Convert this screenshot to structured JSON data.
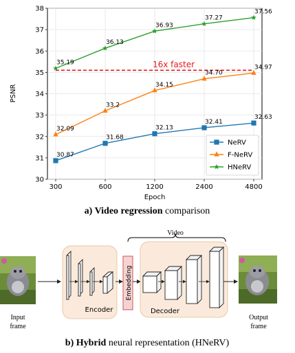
{
  "chart_data": {
    "type": "line",
    "xlabel": "Epoch",
    "ylabel": "PSNR",
    "ylim": [
      30,
      38
    ],
    "x_scale": "log2",
    "categories": [
      "300",
      "600",
      "1200",
      "2400",
      "4800"
    ],
    "x_values": [
      300,
      600,
      1200,
      2400,
      4800
    ],
    "y_ticks": [
      "30",
      "31",
      "32",
      "33",
      "34",
      "35",
      "36",
      "37",
      "38"
    ],
    "grid": "on",
    "legend_position": "lower-right",
    "series": [
      {
        "name": "NeRV",
        "color": "#1f77b4",
        "marker": "square",
        "values": [
          30.87,
          31.68,
          32.13,
          32.41,
          32.63
        ],
        "labels": [
          "30.87",
          "31.68",
          "32.13",
          "32.41",
          "32.63"
        ]
      },
      {
        "name": "F-NeRV",
        "color": "#ff7f0e",
        "marker": "triangle",
        "values": [
          32.09,
          33.2,
          34.15,
          34.7,
          34.97
        ],
        "labels": [
          "32.09",
          "33.2",
          "34.15",
          "34.70",
          "34.97"
        ]
      },
      {
        "name": "HNeRV",
        "color": "#2ca02c",
        "marker": "star",
        "values": [
          35.19,
          36.13,
          36.93,
          37.27,
          37.56
        ],
        "labels": [
          "35.19",
          "36.13",
          "36.93",
          "37.27",
          "37.56"
        ]
      }
    ],
    "reference_line": {
      "y": 35.1,
      "x_from": 300,
      "x_to": 4800,
      "color": "#e41a1c",
      "label": "16x faster"
    }
  },
  "caption_a": {
    "bold": "a) Video regression",
    "rest": " comparison"
  },
  "diagram": {
    "video_label": "Video",
    "embedding_label": "Embedding",
    "encoder_label": "Encoder",
    "decoder_label": "Decoder",
    "input_label_line1": "Input",
    "input_label_line2": "frame",
    "output_label_line1": "Output",
    "output_label_line2": "frame"
  },
  "caption_b": {
    "bold": "b) Hybrid",
    "rest": " neural representation (HNeRV)"
  }
}
